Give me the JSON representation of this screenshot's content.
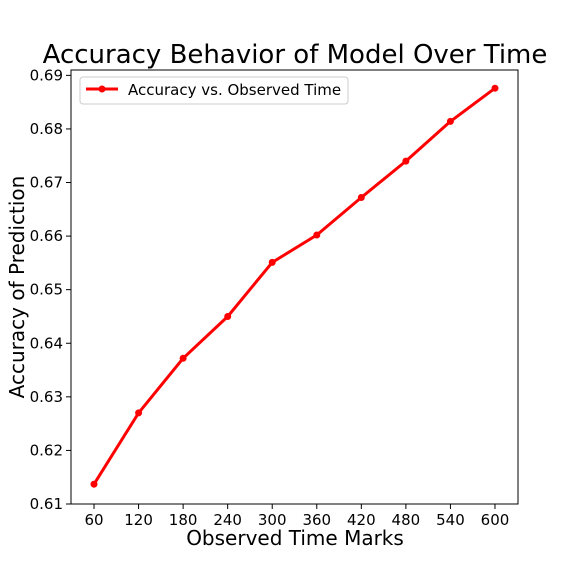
{
  "chart_data": {
    "type": "line",
    "title": "Accuracy Behavior of Model Over Time",
    "xlabel": "Observed Time Marks",
    "ylabel": "Accuracy of Prediction",
    "x": [
      60,
      120,
      180,
      240,
      300,
      360,
      420,
      480,
      540,
      600
    ],
    "xticks": [
      "60",
      "120",
      "180",
      "240",
      "300",
      "360",
      "420",
      "480",
      "540",
      "600"
    ],
    "yticks": [
      "0.61",
      "0.62",
      "0.63",
      "0.64",
      "0.65",
      "0.66",
      "0.67",
      "0.68",
      "0.69"
    ],
    "ytick_values": [
      0.61,
      0.62,
      0.63,
      0.64,
      0.65,
      0.66,
      0.67,
      0.68,
      0.69
    ],
    "ylim": [
      0.61,
      0.691
    ],
    "xlim": [
      29,
      631
    ],
    "series": [
      {
        "name": "Accuracy vs. Observed Time",
        "values": [
          0.6137,
          0.627,
          0.6372,
          0.645,
          0.6551,
          0.6602,
          0.6672,
          0.674,
          0.6814,
          0.6876
        ],
        "color": "#ff0000",
        "marker": "circle"
      }
    ],
    "legend": {
      "position": "top-left",
      "entries": [
        "Accuracy vs. Observed Time"
      ]
    },
    "grid": false
  }
}
